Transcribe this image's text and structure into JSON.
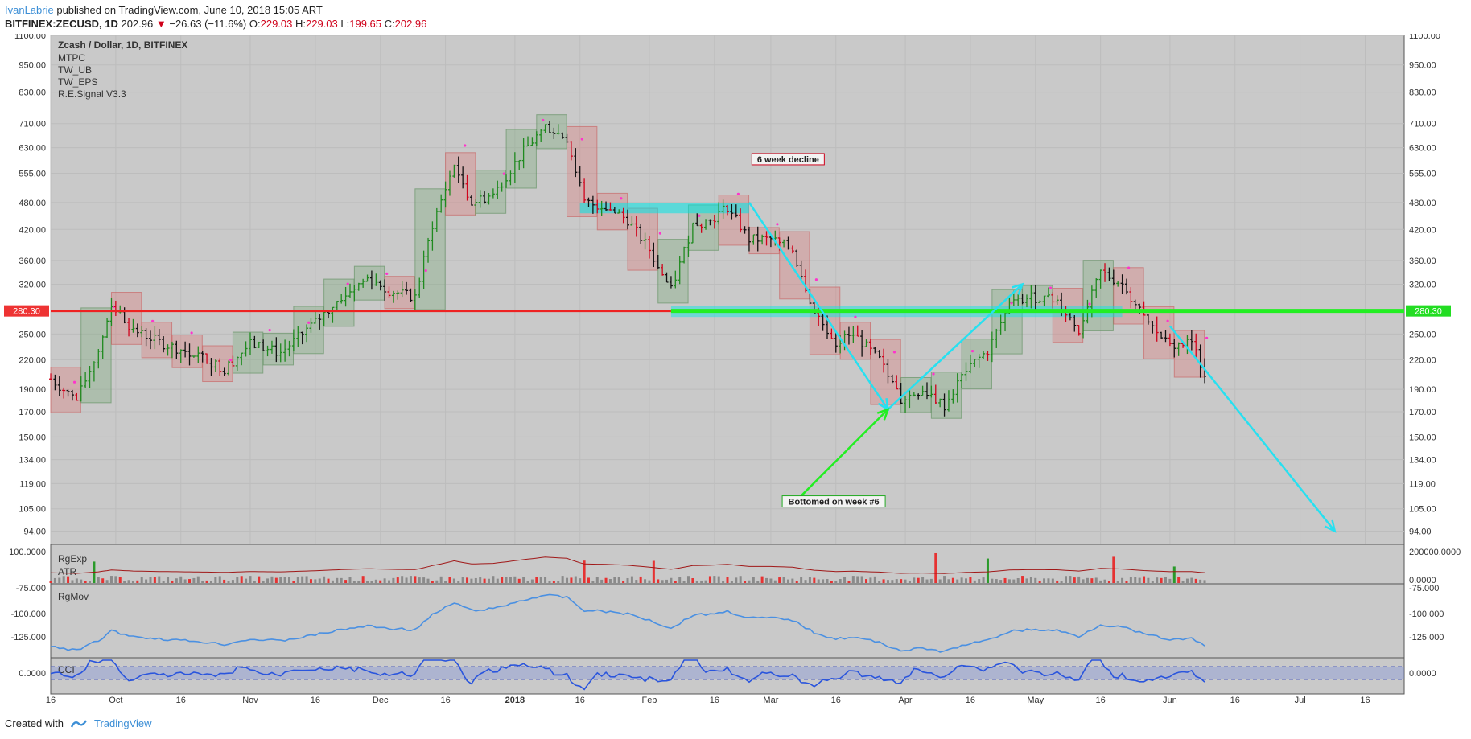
{
  "header": {
    "author": "IvanLabrie",
    "published_text": "published on TradingView.com, June 10, 2018 15:05 ART",
    "symbol": "BITFINEX:ZECUSD, 1D",
    "last_price": "202.96",
    "change": "−26.63 (−11.6%)",
    "ohlc": {
      "o_label": "O:",
      "o": "229.03",
      "h_label": "H:",
      "h": "229.03",
      "l_label": "L:",
      "l": "199.65",
      "c_label": "C:",
      "c": "202.96"
    }
  },
  "footer": {
    "created_with": "Created with",
    "brand": "TradingView"
  },
  "chart_data": {
    "type": "candlestick",
    "title": "Zcash / Dollar, 1D, BITFINEX",
    "indicators": [
      "MTPC",
      "TW_UB",
      "TW_EPS",
      "R.E.Signal V3.3"
    ],
    "y_scale": "log",
    "ylim": [
      88,
      1100
    ],
    "y_ticks": [
      "1100.00",
      "950.00",
      "830.00",
      "710.00",
      "630.00",
      "555.00",
      "480.00",
      "420.00",
      "360.00",
      "320.00",
      "280.30",
      "250.00",
      "220.00",
      "190.00",
      "170.00",
      "150.00",
      "134.00",
      "119.00",
      "105.00",
      "94.00"
    ],
    "price_level": "280.30",
    "x_ticks": [
      "16",
      "Oct",
      "16",
      "Nov",
      "16",
      "Dec",
      "16",
      "2018",
      "16",
      "Feb",
      "16",
      "Mar",
      "16",
      "Apr",
      "16",
      "May",
      "16",
      "Jun",
      "16",
      "Jul",
      "16"
    ],
    "x_dates": [
      "2017-09-16",
      "2017-10-01",
      "2017-10-16",
      "2017-11-01",
      "2017-11-16",
      "2017-12-01",
      "2017-12-16",
      "2018-01-01",
      "2018-01-16",
      "2018-02-01",
      "2018-02-16",
      "2018-03-01",
      "2018-03-16",
      "2018-04-01",
      "2018-04-16",
      "2018-05-01",
      "2018-05-16",
      "2018-06-01",
      "2018-06-16",
      "2018-07-01",
      "2018-07-16"
    ],
    "price_path": [
      [
        "2017-09-16",
        200
      ],
      [
        "2017-09-22",
        180
      ],
      [
        "2017-09-27",
        230
      ],
      [
        "2017-09-30",
        290
      ],
      [
        "2017-10-05",
        255
      ],
      [
        "2017-10-12",
        238
      ],
      [
        "2017-10-20",
        225
      ],
      [
        "2017-10-26",
        210
      ],
      [
        "2017-11-01",
        238
      ],
      [
        "2017-11-08",
        228
      ],
      [
        "2017-11-16",
        265
      ],
      [
        "2017-11-22",
        300
      ],
      [
        "2017-11-28",
        330
      ],
      [
        "2017-12-03",
        310
      ],
      [
        "2017-12-09",
        300
      ],
      [
        "2017-12-13",
        430
      ],
      [
        "2017-12-18",
        580
      ],
      [
        "2017-12-22",
        480
      ],
      [
        "2017-12-27",
        500
      ],
      [
        "2018-01-03",
        620
      ],
      [
        "2018-01-08",
        700
      ],
      [
        "2018-01-13",
        660
      ],
      [
        "2018-01-17",
        480
      ],
      [
        "2018-01-22",
        470
      ],
      [
        "2018-01-27",
        440
      ],
      [
        "2018-02-01",
        380
      ],
      [
        "2018-02-06",
        310
      ],
      [
        "2018-02-11",
        430
      ],
      [
        "2018-02-15",
        440
      ],
      [
        "2018-02-19",
        470
      ],
      [
        "2018-02-24",
        400
      ],
      [
        "2018-03-01",
        400
      ],
      [
        "2018-03-06",
        380
      ],
      [
        "2018-03-11",
        280
      ],
      [
        "2018-03-16",
        240
      ],
      [
        "2018-03-20",
        250
      ],
      [
        "2018-03-26",
        220
      ],
      [
        "2018-03-31",
        180
      ],
      [
        "2018-04-05",
        190
      ],
      [
        "2018-04-10",
        175
      ],
      [
        "2018-04-15",
        210
      ],
      [
        "2018-04-20",
        230
      ],
      [
        "2018-04-25",
        290
      ],
      [
        "2018-04-30",
        300
      ],
      [
        "2018-05-06",
        295
      ],
      [
        "2018-05-11",
        255
      ],
      [
        "2018-05-16",
        340
      ],
      [
        "2018-05-21",
        320
      ],
      [
        "2018-05-26",
        270
      ],
      [
        "2018-06-01",
        235
      ],
      [
        "2018-06-06",
        240
      ],
      [
        "2018-06-09",
        203
      ]
    ],
    "annotations": [
      {
        "text": "6 week decline",
        "color": "#d0021b"
      },
      {
        "text": "Bottomed on week #6",
        "color": "#22aa22"
      }
    ],
    "projection": {
      "from": [
        "2018-06-01",
        260
      ],
      "to": [
        "2018-07-09",
        94
      ]
    },
    "subpanes": [
      {
        "name": "RgExp",
        "extra_label": "ATR",
        "left_axis": [
          "100.0000"
        ],
        "right_axis": [
          "200000.0000",
          "0.0000"
        ],
        "type": "histogram"
      },
      {
        "name": "RgMov",
        "left_axis": [
          "-75.000",
          "-100.000",
          "-125.000"
        ],
        "right_axis": [
          "-75.000",
          "-100.000",
          "-125.000"
        ],
        "type": "line"
      },
      {
        "name": "CCI",
        "left_axis": [
          "0.0000"
        ],
        "right_axis": [
          "0.0000"
        ],
        "type": "oscillator"
      }
    ]
  }
}
